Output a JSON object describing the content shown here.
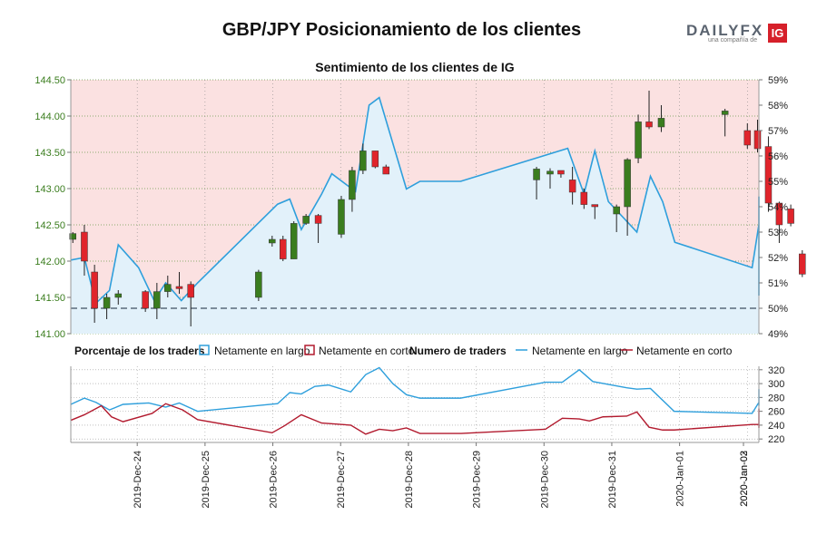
{
  "header": {
    "title": "GBP/JPY Posicionamiento de los clientes",
    "subtitle": "Sentimiento de los clientes de IG",
    "logo": {
      "brand": "DAILYFX",
      "tagline": "una compañía de",
      "badge": "IG"
    }
  },
  "colors": {
    "long": "#2e9fdc",
    "short": "#b21a2e",
    "candle_up": "#3a7d1e",
    "candle_down": "#e0242b",
    "bg_short": "#fbe1e1",
    "bg_long": "#e2f1fa",
    "left_axis": "#3a7d1e"
  },
  "legend": {
    "pct_title": "Porcentaje de los traders",
    "count_title": "Numero de traders",
    "long_label": "Netamente en largo",
    "short_label": "Netamente en corto"
  },
  "chart_data": [
    {
      "id": "price-sentiment",
      "type": "candlestick+line",
      "ylim_price": [
        141.0,
        144.5
      ],
      "price_ticks": [
        "141.00",
        "141.50",
        "142.00",
        "142.50",
        "143.00",
        "143.50",
        "144.00",
        "144.50"
      ],
      "ylim_pct": [
        49,
        59
      ],
      "pct_ticks": [
        "49%",
        "50%",
        "51%",
        "52%",
        "53%",
        "54%",
        "55%",
        "56%",
        "57%",
        "58%",
        "59%"
      ],
      "reference_line_pct": 50,
      "x_time_range": [
        -0.15,
        10.0
      ],
      "x_tick_labels": [
        "2019-Dec-24",
        "2019-Dec-25",
        "2019-Dec-26",
        "2019-Dec-27",
        "2019-Dec-28",
        "2019-Dec-29",
        "2019-Dec-30",
        "2019-Dec-31",
        "2020-Jan-01",
        "2020-Jan-02",
        "2020-Jan-03"
      ],
      "x_tick_positions": [
        0.83,
        1.83,
        2.83,
        3.83,
        4.83,
        5.83,
        6.83,
        7.83,
        8.83,
        9.83,
        10.83
      ],
      "candles": [
        {
          "t": -0.12,
          "o": 142.3,
          "h": 142.4,
          "l": 142.25,
          "c": 142.38
        },
        {
          "t": 0.05,
          "o": 142.4,
          "h": 142.5,
          "l": 141.8,
          "c": 142.0
        },
        {
          "t": 0.2,
          "o": 141.85,
          "h": 141.95,
          "l": 141.15,
          "c": 141.35
        },
        {
          "t": 0.38,
          "o": 141.35,
          "h": 141.55,
          "l": 141.2,
          "c": 141.5
        },
        {
          "t": 0.55,
          "o": 141.5,
          "h": 141.6,
          "l": 141.4,
          "c": 141.55
        },
        {
          "t": 0.95,
          "o": 141.58,
          "h": 141.6,
          "l": 141.3,
          "c": 141.35
        },
        {
          "t": 1.12,
          "o": 141.35,
          "h": 141.7,
          "l": 141.2,
          "c": 141.58
        },
        {
          "t": 1.28,
          "o": 141.58,
          "h": 141.8,
          "l": 141.5,
          "c": 141.68
        },
        {
          "t": 1.45,
          "o": 141.65,
          "h": 141.85,
          "l": 141.55,
          "c": 141.62
        },
        {
          "t": 1.62,
          "o": 141.68,
          "h": 141.72,
          "l": 141.1,
          "c": 141.5
        },
        {
          "t": 2.62,
          "o": 141.5,
          "h": 141.88,
          "l": 141.45,
          "c": 141.85
        },
        {
          "t": 2.82,
          "o": 142.25,
          "h": 142.35,
          "l": 142.2,
          "c": 142.3
        },
        {
          "t": 2.98,
          "o": 142.3,
          "h": 142.35,
          "l": 142.0,
          "c": 142.03
        },
        {
          "t": 3.14,
          "o": 142.03,
          "h": 142.55,
          "l": 142.03,
          "c": 142.52
        },
        {
          "t": 3.32,
          "o": 142.52,
          "h": 142.65,
          "l": 142.5,
          "c": 142.62
        },
        {
          "t": 3.5,
          "o": 142.63,
          "h": 142.65,
          "l": 142.25,
          "c": 142.52
        },
        {
          "t": 3.84,
          "o": 142.37,
          "h": 142.9,
          "l": 142.32,
          "c": 142.85
        },
        {
          "t": 4.0,
          "o": 142.85,
          "h": 143.3,
          "l": 142.68,
          "c": 143.25
        },
        {
          "t": 4.16,
          "o": 143.25,
          "h": 143.62,
          "l": 143.2,
          "c": 143.52
        },
        {
          "t": 4.34,
          "o": 143.52,
          "h": 143.52,
          "l": 143.28,
          "c": 143.3
        },
        {
          "t": 4.5,
          "o": 143.3,
          "h": 143.33,
          "l": 143.2,
          "c": 143.2
        },
        {
          "t": 6.72,
          "o": 143.12,
          "h": 143.3,
          "l": 142.85,
          "c": 143.27
        },
        {
          "t": 6.92,
          "o": 143.2,
          "h": 143.28,
          "l": 143.0,
          "c": 143.24
        },
        {
          "t": 7.08,
          "o": 143.25,
          "h": 143.25,
          "l": 143.15,
          "c": 143.2
        },
        {
          "t": 7.25,
          "o": 143.12,
          "h": 143.3,
          "l": 142.78,
          "c": 142.95
        },
        {
          "t": 7.42,
          "o": 142.95,
          "h": 143.0,
          "l": 142.72,
          "c": 142.78
        },
        {
          "t": 7.58,
          "o": 142.78,
          "h": 142.78,
          "l": 142.58,
          "c": 142.75
        },
        {
          "t": 7.9,
          "o": 142.65,
          "h": 142.78,
          "l": 142.4,
          "c": 142.75
        },
        {
          "t": 8.06,
          "o": 142.75,
          "h": 143.42,
          "l": 142.35,
          "c": 143.4
        },
        {
          "t": 8.22,
          "o": 143.42,
          "h": 144.02,
          "l": 143.35,
          "c": 143.92
        },
        {
          "t": 8.38,
          "o": 143.92,
          "h": 144.35,
          "l": 143.82,
          "c": 143.85
        },
        {
          "t": 8.56,
          "o": 143.85,
          "h": 144.15,
          "l": 143.78,
          "c": 143.97
        },
        {
          "t": 9.5,
          "o": 144.02,
          "h": 144.1,
          "l": 143.72,
          "c": 144.07
        },
        {
          "t": 9.83,
          "o": 143.8,
          "h": 143.9,
          "l": 143.55,
          "c": 143.6
        },
        {
          "t": 9.98,
          "o": 143.8,
          "h": 143.95,
          "l": 143.5,
          "c": 143.55
        },
        {
          "t": 10.14,
          "o": 143.58,
          "h": 143.72,
          "l": 142.68,
          "c": 142.8
        },
        {
          "t": 10.3,
          "o": 142.8,
          "h": 142.82,
          "l": 142.25,
          "c": 142.5
        },
        {
          "t": 10.47,
          "o": 142.72,
          "h": 142.78,
          "l": 142.48,
          "c": 142.52
        },
        {
          "t": 10.64,
          "o": 142.1,
          "h": 142.15,
          "l": 141.78,
          "c": 141.82
        }
      ],
      "long_pct_series": [
        {
          "t": -0.15,
          "v": 51.9
        },
        {
          "t": 0.05,
          "v": 52.0
        },
        {
          "t": 0.22,
          "v": 50.2
        },
        {
          "t": 0.42,
          "v": 50.7
        },
        {
          "t": 0.55,
          "v": 52.5
        },
        {
          "t": 0.85,
          "v": 51.6
        },
        {
          "t": 1.08,
          "v": 50.3
        },
        {
          "t": 1.25,
          "v": 51.0
        },
        {
          "t": 1.48,
          "v": 50.3
        },
        {
          "t": 1.72,
          "v": 51.0
        },
        {
          "t": 2.9,
          "v": 54.1
        },
        {
          "t": 3.08,
          "v": 54.3
        },
        {
          "t": 3.25,
          "v": 53.1
        },
        {
          "t": 3.55,
          "v": 54.5
        },
        {
          "t": 3.7,
          "v": 55.3
        },
        {
          "t": 4.05,
          "v": 54.6
        },
        {
          "t": 4.25,
          "v": 58.0
        },
        {
          "t": 4.4,
          "v": 58.3
        },
        {
          "t": 4.8,
          "v": 54.7
        },
        {
          "t": 5.0,
          "v": 55.0
        },
        {
          "t": 5.6,
          "v": 55.0
        },
        {
          "t": 7.18,
          "v": 56.3
        },
        {
          "t": 7.42,
          "v": 54.5
        },
        {
          "t": 7.58,
          "v": 56.2
        },
        {
          "t": 7.78,
          "v": 54.2
        },
        {
          "t": 8.2,
          "v": 53.0
        },
        {
          "t": 8.4,
          "v": 55.2
        },
        {
          "t": 8.58,
          "v": 54.2
        },
        {
          "t": 8.76,
          "v": 52.6
        },
        {
          "t": 9.9,
          "v": 51.6
        },
        {
          "t": 10.16,
          "v": 53.3
        },
        {
          "t": 10.4,
          "v": 50.9
        },
        {
          "t": 10.63,
          "v": 54.4
        },
        {
          "t": 10.85,
          "v": 53.8
        },
        {
          "t": 11.14,
          "v": 50.5
        }
      ]
    },
    {
      "id": "trader-counts",
      "type": "line",
      "ylim": [
        215,
        325
      ],
      "y_ticks": [
        "220",
        "240",
        "260",
        "280",
        "300",
        "320"
      ],
      "series": [
        {
          "name": "Netamente en largo",
          "points": [
            {
              "t": -0.15,
              "v": 270
            },
            {
              "t": 0.05,
              "v": 279
            },
            {
              "t": 0.22,
              "v": 273
            },
            {
              "t": 0.42,
              "v": 262
            },
            {
              "t": 0.62,
              "v": 270
            },
            {
              "t": 1.0,
              "v": 272
            },
            {
              "t": 1.25,
              "v": 266
            },
            {
              "t": 1.45,
              "v": 272
            },
            {
              "t": 1.72,
              "v": 260
            },
            {
              "t": 2.9,
              "v": 271
            },
            {
              "t": 3.08,
              "v": 287
            },
            {
              "t": 3.25,
              "v": 285
            },
            {
              "t": 3.45,
              "v": 296
            },
            {
              "t": 3.65,
              "v": 298
            },
            {
              "t": 3.98,
              "v": 288
            },
            {
              "t": 4.2,
              "v": 313
            },
            {
              "t": 4.4,
              "v": 323
            },
            {
              "t": 4.6,
              "v": 300
            },
            {
              "t": 4.8,
              "v": 284
            },
            {
              "t": 5.0,
              "v": 279
            },
            {
              "t": 5.6,
              "v": 279
            },
            {
              "t": 6.85,
              "v": 302
            },
            {
              "t": 7.1,
              "v": 302
            },
            {
              "t": 7.35,
              "v": 320
            },
            {
              "t": 7.55,
              "v": 303
            },
            {
              "t": 8.05,
              "v": 294
            },
            {
              "t": 8.2,
              "v": 292
            },
            {
              "t": 8.4,
              "v": 293
            },
            {
              "t": 8.75,
              "v": 260
            },
            {
              "t": 9.9,
              "v": 257
            },
            {
              "t": 10.08,
              "v": 273
            },
            {
              "t": 10.25,
              "v": 273
            },
            {
              "t": 10.8,
              "v": 292
            },
            {
              "t": 11.14,
              "v": 268
            }
          ]
        },
        {
          "name": "Netamente en corto",
          "points": [
            {
              "t": -0.15,
              "v": 247
            },
            {
              "t": 0.05,
              "v": 255
            },
            {
              "t": 0.3,
              "v": 268
            },
            {
              "t": 0.45,
              "v": 252
            },
            {
              "t": 0.62,
              "v": 245
            },
            {
              "t": 1.05,
              "v": 257
            },
            {
              "t": 1.25,
              "v": 271
            },
            {
              "t": 1.5,
              "v": 262
            },
            {
              "t": 1.72,
              "v": 248
            },
            {
              "t": 2.82,
              "v": 229
            },
            {
              "t": 3.0,
              "v": 239
            },
            {
              "t": 3.25,
              "v": 255
            },
            {
              "t": 3.55,
              "v": 243
            },
            {
              "t": 3.98,
              "v": 240
            },
            {
              "t": 4.2,
              "v": 227
            },
            {
              "t": 4.4,
              "v": 234
            },
            {
              "t": 4.6,
              "v": 232
            },
            {
              "t": 4.8,
              "v": 236
            },
            {
              "t": 5.0,
              "v": 228
            },
            {
              "t": 5.6,
              "v": 228
            },
            {
              "t": 6.85,
              "v": 234
            },
            {
              "t": 7.1,
              "v": 250
            },
            {
              "t": 7.35,
              "v": 249
            },
            {
              "t": 7.5,
              "v": 246
            },
            {
              "t": 7.7,
              "v": 252
            },
            {
              "t": 8.05,
              "v": 253
            },
            {
              "t": 8.2,
              "v": 259
            },
            {
              "t": 8.38,
              "v": 237
            },
            {
              "t": 8.58,
              "v": 233
            },
            {
              "t": 8.75,
              "v": 233
            },
            {
              "t": 9.9,
              "v": 241
            },
            {
              "t": 10.15,
              "v": 241
            },
            {
              "t": 10.3,
              "v": 264
            },
            {
              "t": 10.45,
              "v": 236
            },
            {
              "t": 10.62,
              "v": 251
            },
            {
              "t": 11.14,
              "v": 262
            }
          ]
        }
      ]
    }
  ]
}
